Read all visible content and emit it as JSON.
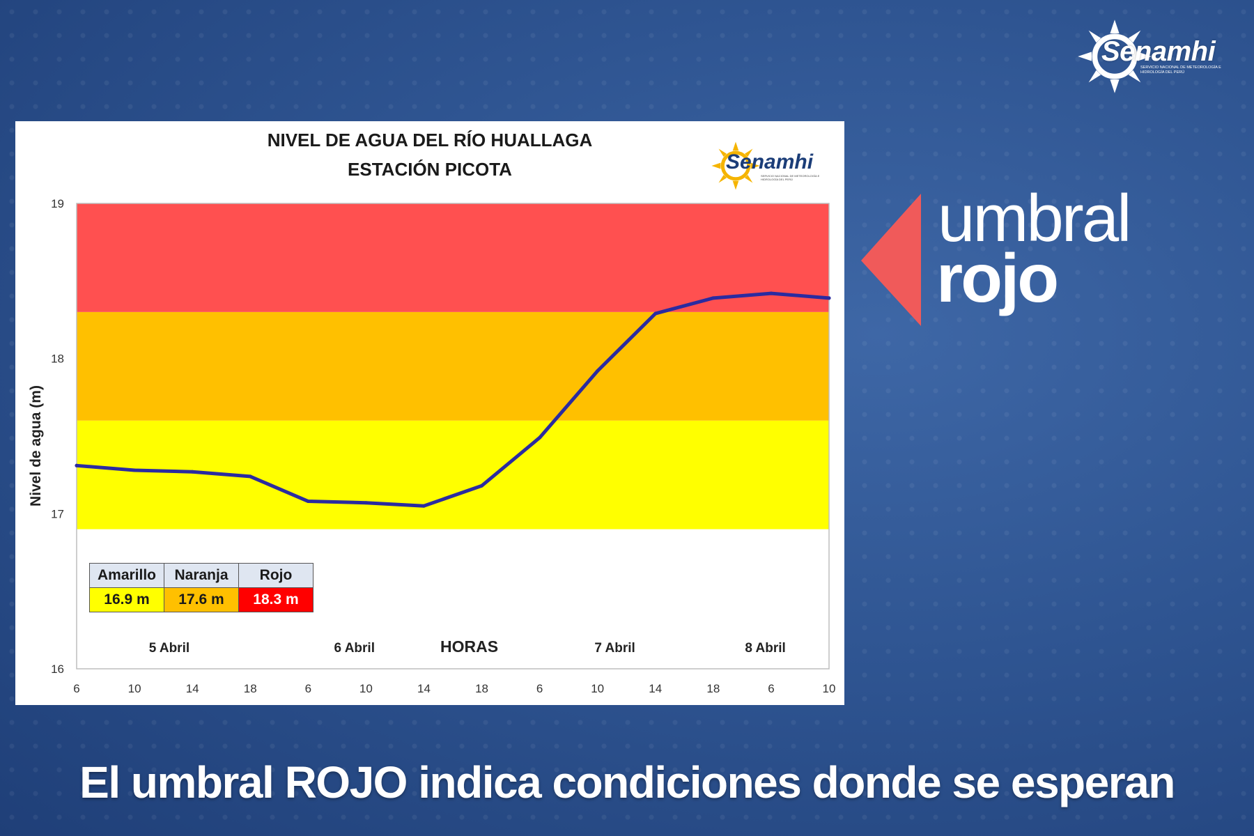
{
  "brand": {
    "name": "Senamhi",
    "subtitle": "Servicio Nacional de Meteorología e Hidrología del Perú"
  },
  "badge": {
    "line1": "umbral",
    "line2": "rojo"
  },
  "caption": "El umbral ROJO indica condiciones donde se esperan",
  "legend": {
    "headers": [
      "Amarillo",
      "Naranja",
      "Rojo"
    ],
    "values": [
      "16.9 m",
      "17.6 m",
      "18.3 m"
    ]
  },
  "chart_data": {
    "type": "line",
    "title": "NIVEL DE AGUA DEL RÍO HUALLAGA",
    "subtitle": "ESTACIÓN PICOTA",
    "xlabel": "HORAS",
    "ylabel": "Nivel de agua  (m)",
    "ylim": [
      16,
      19
    ],
    "yticks": [
      "16",
      "17",
      "18",
      "19"
    ],
    "x_tick_labels": [
      "6",
      "10",
      "14",
      "18",
      "6",
      "10",
      "14",
      "18",
      "6",
      "10",
      "14",
      "18",
      "6",
      "10"
    ],
    "day_labels": [
      {
        "label": "5 Abril",
        "tick_index": 1.6
      },
      {
        "label": "6 Abril",
        "tick_index": 4.8
      },
      {
        "label": "7 Abril",
        "tick_index": 9.3
      },
      {
        "label": "8 Abril",
        "tick_index": 11.9
      }
    ],
    "thresholds": [
      {
        "name": "Amarillo",
        "value": 16.9,
        "color": "#ffff00"
      },
      {
        "name": "Naranja",
        "value": 17.6,
        "color": "#ffc000"
      },
      {
        "name": "Rojo",
        "value": 18.3,
        "color": "#ff5050"
      }
    ],
    "series": [
      {
        "name": "Nivel de agua",
        "color": "#2b2ba0",
        "x": [
          0,
          1,
          2,
          3,
          4,
          5,
          6,
          7,
          8,
          9,
          10,
          11,
          12,
          13
        ],
        "values": [
          17.31,
          17.28,
          17.27,
          17.24,
          17.08,
          17.07,
          17.05,
          17.18,
          17.49,
          17.92,
          18.29,
          18.39,
          18.42,
          18.39
        ]
      }
    ]
  }
}
